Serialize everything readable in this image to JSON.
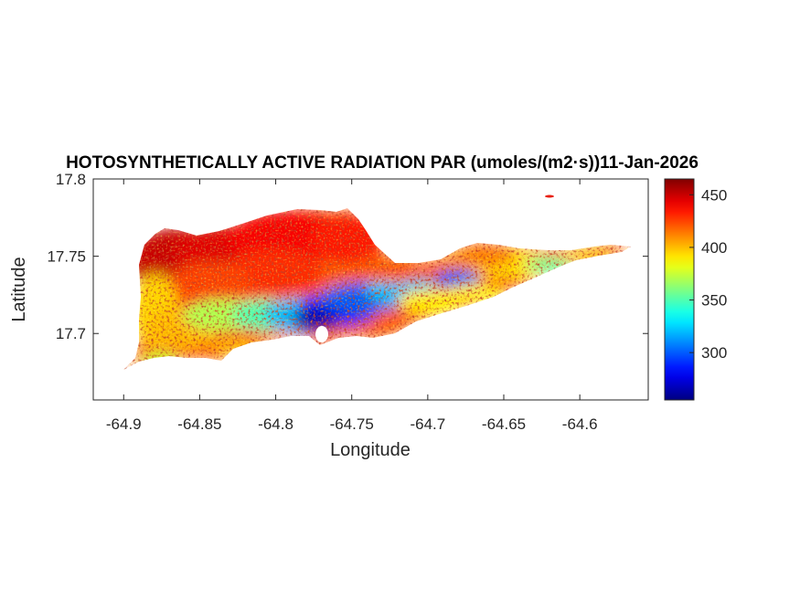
{
  "figure": {
    "title": "HOTOSYNTHETICALLY ACTIVE RADIATION PAR (umoles/(m2·s))11-Jan-2026",
    "xlabel": "Longitude",
    "ylabel": "Latitude"
  },
  "map": {
    "xlim": [
      -64.92,
      -64.555
    ],
    "ylim": [
      17.657,
      17.8
    ],
    "x_ticks": [
      -64.9,
      -64.85,
      -64.8,
      -64.75,
      -64.7,
      -64.65,
      -64.6
    ],
    "x_tick_labels": [
      "-64.9",
      "-64.85",
      "-64.8",
      "-64.75",
      "-64.7",
      "-64.65",
      "-64.6"
    ],
    "y_ticks": [
      17.7,
      17.75,
      17.8
    ],
    "y_tick_labels": [
      "17.7",
      "17.75",
      "17.8"
    ],
    "grid": false,
    "colormap": "jet"
  },
  "colorbar": {
    "range": [
      255,
      465
    ],
    "ticks": [
      300,
      350,
      400,
      450
    ],
    "tick_labels": [
      "300",
      "350",
      "400",
      "450"
    ],
    "location": "right"
  },
  "chart_data": {
    "type": "heatmap",
    "title": "HOTOSYNTHETICALLY ACTIVE RADIATION PAR (umoles/(m2·s))11-Jan-2026",
    "xlabel": "Longitude",
    "ylabel": "Latitude",
    "xlim": [
      -64.92,
      -64.555
    ],
    "ylim": [
      17.657,
      17.8
    ],
    "clim": [
      255,
      465
    ],
    "colormap": "jet",
    "samples": [
      {
        "lon": -64.87,
        "lat": 17.755,
        "value": 450
      },
      {
        "lon": -64.83,
        "lat": 17.765,
        "value": 440
      },
      {
        "lon": -64.78,
        "lat": 17.76,
        "value": 430
      },
      {
        "lon": -64.86,
        "lat": 17.72,
        "value": 390
      },
      {
        "lon": -64.83,
        "lat": 17.705,
        "value": 350
      },
      {
        "lon": -64.79,
        "lat": 17.71,
        "value": 310
      },
      {
        "lon": -64.77,
        "lat": 17.71,
        "value": 270
      },
      {
        "lon": -64.74,
        "lat": 17.718,
        "value": 285
      },
      {
        "lon": -64.7,
        "lat": 17.728,
        "value": 320
      },
      {
        "lon": -64.675,
        "lat": 17.738,
        "value": 300
      },
      {
        "lon": -64.66,
        "lat": 17.725,
        "value": 390
      },
      {
        "lon": -64.63,
        "lat": 17.745,
        "value": 355
      },
      {
        "lon": -64.6,
        "lat": 17.752,
        "value": 400
      },
      {
        "lon": -64.74,
        "lat": 17.745,
        "value": 415
      },
      {
        "lon": -64.9,
        "lat": 17.683,
        "value": 380
      }
    ]
  }
}
